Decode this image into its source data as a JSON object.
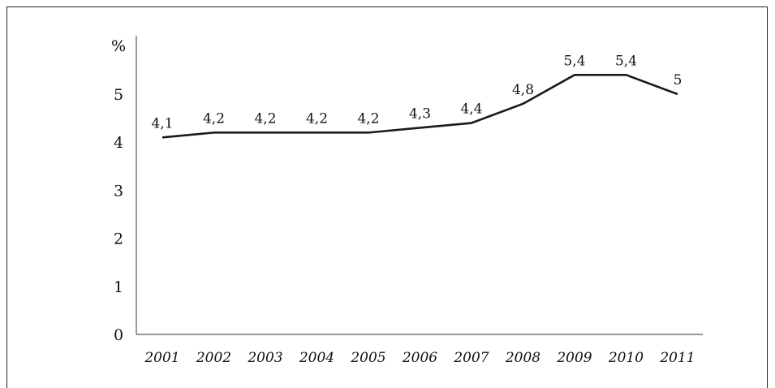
{
  "chart_data": {
    "type": "line",
    "title": "",
    "xlabel": "",
    "ylabel": "%",
    "ylim": [
      0,
      5.5
    ],
    "yticks": [
      0,
      1,
      2,
      3,
      4,
      5
    ],
    "categories": [
      "2001",
      "2002",
      "2003",
      "2004",
      "2005",
      "2006",
      "2007",
      "2008",
      "2009",
      "2010",
      "2011"
    ],
    "values": [
      4.1,
      4.2,
      4.2,
      4.2,
      4.2,
      4.3,
      4.4,
      4.8,
      5.4,
      5.4,
      5.0
    ],
    "data_labels": [
      "4,1",
      "4,2",
      "4,2",
      "4,2",
      "4,2",
      "4,3",
      "4,4",
      "4,8",
      "5,4",
      "5,4",
      "5"
    ],
    "grid": false,
    "legend": "none",
    "line_color": "#1a1a1a"
  }
}
